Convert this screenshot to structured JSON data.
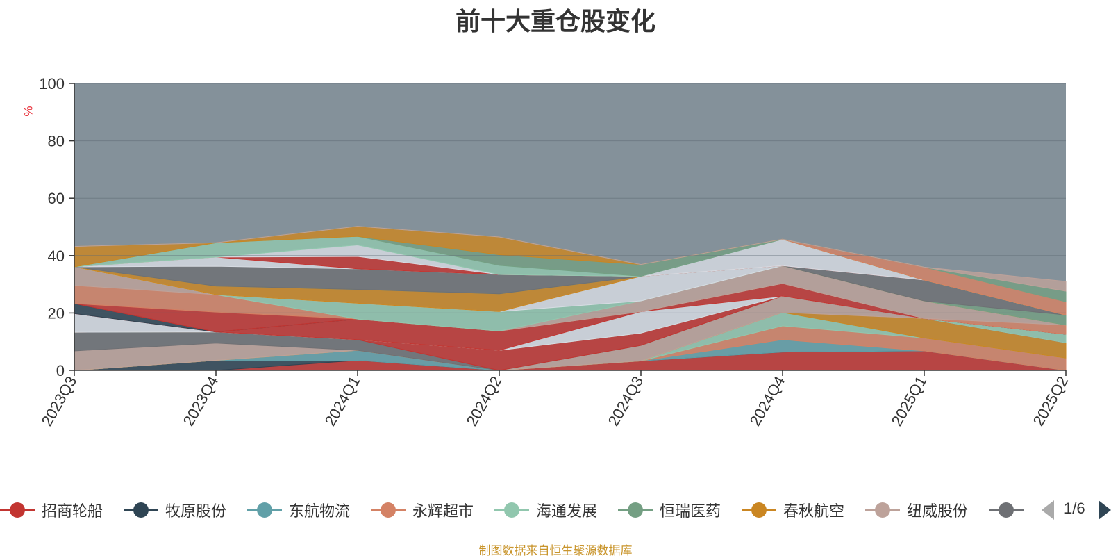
{
  "chart_data": {
    "type": "area",
    "title": "前十大重仓股变化",
    "ylabel": "%",
    "ylim": [
      0,
      100
    ],
    "yticks": [
      0,
      20,
      40,
      60,
      80,
      100
    ],
    "grid": true,
    "categories": [
      "2023Q3",
      "2023Q4",
      "2024Q1",
      "2024Q2",
      "2024Q3",
      "2024Q4",
      "2025Q1",
      "2025Q2"
    ],
    "background_color": "#84919a",
    "series": [
      {
        "name": "招商轮船",
        "color": "#c23531",
        "values": [
          0.0,
          0.0,
          3.5,
          0.0,
          3.3,
          6.4,
          6.8,
          0.0
        ]
      },
      {
        "name": "牧原股份",
        "color": "#2f4554",
        "values": [
          0.0,
          3.5,
          0.0,
          0.0,
          0.0,
          0.0,
          0.0,
          0.0
        ]
      },
      {
        "name": "东航物流",
        "color": "#61a0a8",
        "values": [
          0.0,
          0.0,
          3.5,
          0.0,
          0.0,
          4.3,
          0.0,
          0.0
        ]
      },
      {
        "name": "永辉超市",
        "color": "#d48265",
        "values": [
          0.0,
          0.0,
          0.0,
          0.0,
          0.0,
          4.8,
          4.5,
          4.3
        ]
      },
      {
        "name": "海通发展",
        "color": "#91c7ae",
        "values": [
          0.0,
          0.0,
          0.0,
          0.0,
          0.0,
          4.7,
          0.0,
          0.0
        ]
      },
      {
        "name": "恒瑞医药",
        "color": "#749f83",
        "values": [
          0.0,
          0.0,
          0.0,
          0.0,
          0.0,
          0.0,
          0.0,
          0.0
        ]
      },
      {
        "name": "春秋航空",
        "color": "#ca8622",
        "values": [
          0.0,
          0.0,
          0.0,
          0.0,
          0.0,
          0.0,
          6.8,
          5.3
        ]
      },
      {
        "name": "纽威股份",
        "color": "#bda29a",
        "values": [
          6.8,
          6.0,
          0.0,
          0.0,
          5.4,
          5.7,
          0.0,
          0.0
        ]
      },
      {
        "name": "",
        "color": "#6e7074",
        "values": [
          6.5,
          3.9,
          3.7,
          0.0,
          0.0,
          0.0,
          0.0,
          0.0
        ]
      },
      {
        "name": "",
        "color": "#c23531",
        "values": [
          0.0,
          0.0,
          0.0,
          7.0,
          4.3,
          0.0,
          0.0,
          0.0
        ]
      },
      {
        "name": "",
        "color": "#91c7ae",
        "values": [
          0.0,
          0.0,
          0.0,
          0.0,
          0.0,
          0.0,
          0.0,
          3.0
        ]
      },
      {
        "name": "",
        "color": "#546570",
        "values": [
          0.0,
          0.0,
          0.0,
          0.0,
          0.0,
          0.0,
          0.0,
          0.0
        ]
      },
      {
        "name": "",
        "color": "#d7dce3",
        "values": [
          6.5,
          0.0,
          0.0,
          0.0,
          7.5,
          0.0,
          0.0,
          0.0
        ]
      },
      {
        "name": "",
        "color": "#c23531",
        "values": [
          0.0,
          0.0,
          7.2,
          6.7,
          0.0,
          4.4,
          0.0,
          0.0
        ]
      },
      {
        "name": "",
        "color": "#2f4554",
        "values": [
          3.5,
          0.0,
          0.0,
          0.0,
          0.0,
          0.0,
          0.0,
          0.0
        ]
      },
      {
        "name": "",
        "color": "#c23531",
        "values": [
          0.0,
          6.9,
          0.0,
          0.0,
          0.0,
          0.0,
          0.0,
          0.0
        ]
      },
      {
        "name": "",
        "color": "#d48265",
        "values": [
          6.3,
          6.1,
          0.0,
          0.0,
          0.0,
          0.0,
          0.0,
          3.2
        ]
      },
      {
        "name": "",
        "color": "#bda29a",
        "values": [
          6.5,
          0.0,
          0.0,
          0.0,
          3.7,
          6.2,
          6.1,
          0.0
        ]
      },
      {
        "name": "",
        "color": "#91c7ae",
        "values": [
          0.0,
          0.0,
          5.5,
          6.8,
          0.0,
          0.0,
          0.0,
          0.0
        ]
      },
      {
        "name": "",
        "color": "#d7dce3",
        "values": [
          0.0,
          0.0,
          0.0,
          0.0,
          8.6,
          0.0,
          0.0,
          0.0
        ]
      },
      {
        "name": "",
        "color": "#ca8622",
        "values": [
          0.0,
          3.0,
          4.8,
          6.2,
          0.0,
          0.0,
          0.0,
          0.0
        ]
      },
      {
        "name": "",
        "color": "#749f83",
        "values": [
          0.0,
          0.0,
          0.0,
          0.0,
          0.0,
          0.0,
          0.0,
          3.5
        ]
      },
      {
        "name": "",
        "color": "#6e7074",
        "values": [
          0.0,
          6.9,
          7.2,
          6.7,
          0.0,
          0.0,
          7.3,
          0.0
        ]
      },
      {
        "name": "",
        "color": "#d7dce3",
        "values": [
          0.0,
          3.2,
          0.0,
          0.0,
          0.0,
          0.0,
          0.0,
          0.0
        ]
      },
      {
        "name": "",
        "color": "#c23531",
        "values": [
          0.0,
          0.0,
          4.3,
          0.0,
          0.0,
          0.0,
          0.0,
          0.0
        ]
      },
      {
        "name": "",
        "color": "#d7dce3",
        "values": [
          0.0,
          0.0,
          4.0,
          0.0,
          0.0,
          9.2,
          0.0,
          0.0
        ]
      },
      {
        "name": "",
        "color": "#91c7ae",
        "values": [
          0.0,
          5.0,
          3.0,
          3.2,
          0.0,
          0.0,
          0.0,
          0.0
        ]
      },
      {
        "name": "",
        "color": "#749f83",
        "values": [
          0.0,
          0.0,
          0.0,
          3.7,
          4.1,
          0.0,
          0.0,
          0.0
        ]
      },
      {
        "name": "",
        "color": "#ca8622",
        "values": [
          7.1,
          0.0,
          3.5,
          6.2,
          0.0,
          0.0,
          0.0,
          0.0
        ]
      },
      {
        "name": "",
        "color": "#d48265",
        "values": [
          0.0,
          0.0,
          0.0,
          0.0,
          0.0,
          0.0,
          4.5,
          4.6
        ]
      },
      {
        "name": "",
        "color": "#749f83",
        "values": [
          0.0,
          0.0,
          0.0,
          0.0,
          0.0,
          0.0,
          0.0,
          3.7
        ]
      },
      {
        "name": "",
        "color": "#bda29a",
        "values": [
          0.0,
          0.0,
          0.0,
          0.0,
          0.0,
          0.0,
          0.0,
          3.4
        ]
      }
    ]
  },
  "legend": {
    "items": [
      {
        "label": "招商轮船",
        "color": "#c23531"
      },
      {
        "label": "牧原股份",
        "color": "#2f4554"
      },
      {
        "label": "东航物流",
        "color": "#61a0a8"
      },
      {
        "label": "永辉超市",
        "color": "#d48265"
      },
      {
        "label": "海通发展",
        "color": "#91c7ae"
      },
      {
        "label": "恒瑞医药",
        "color": "#749f83"
      },
      {
        "label": "春秋航空",
        "color": "#ca8622"
      },
      {
        "label": "纽威股份",
        "color": "#bda29a"
      },
      {
        "label": "",
        "color": "#6e7074"
      }
    ],
    "page": "1/6"
  },
  "source": "制图数据来自恒生聚源数据库"
}
